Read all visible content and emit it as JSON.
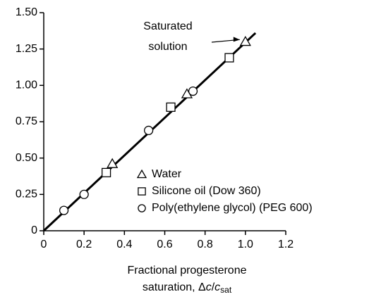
{
  "chart_data": {
    "type": "scatter",
    "xlim": [
      0,
      1.2
    ],
    "ylim": [
      0,
      1.5
    ],
    "xticks": [
      0,
      0.2,
      0.4,
      0.6,
      0.8,
      {
        "value": 1,
        "label": "1.0"
      },
      {
        "value": 1.2,
        "label": "1.2"
      }
    ],
    "yticks": [
      0,
      0.25,
      {
        "value": 0.5,
        "label": "0.50"
      },
      0.75,
      {
        "value": 1,
        "label": "1.00"
      },
      1.25,
      {
        "value": 1.5,
        "label": "1.50"
      }
    ],
    "xlabel": {
      "line1": "Fractional progesterone",
      "line2_pre": "saturation, Δ",
      "var1": "c",
      "slash": "/",
      "var2": "c",
      "sub": "sat"
    },
    "series": [
      {
        "name": "Water",
        "marker": "triangle",
        "color": "#000000",
        "x": [
          0.34,
          0.71,
          1.0
        ],
        "values": [
          0.46,
          0.94,
          1.3
        ]
      },
      {
        "name": "Silicone oil (Dow 360)",
        "marker": "square",
        "color": "#000000",
        "x": [
          0.31,
          0.63,
          0.92
        ],
        "values": [
          0.4,
          0.85,
          1.19
        ]
      },
      {
        "name": "Poly(ethylene glycol) (PEG 600)",
        "marker": "circle",
        "color": "#000000",
        "x": [
          0.1,
          0.2,
          0.52,
          0.74
        ],
        "values": [
          0.14,
          0.25,
          0.69,
          0.96
        ]
      }
    ],
    "fit_line": {
      "x": [
        0,
        1.05
      ],
      "values": [
        0,
        1.36
      ]
    },
    "annotation": {
      "lines": [
        "Saturated",
        "solution"
      ],
      "x": 1.0,
      "y": 1.3
    }
  }
}
